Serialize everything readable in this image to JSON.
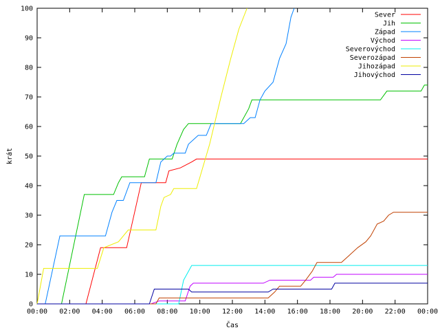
{
  "chart_data": {
    "type": "line",
    "xlabel": "Čas",
    "ylabel": "krát",
    "xlim": [
      0,
      24
    ],
    "ylim": [
      0,
      100
    ],
    "x_ticks": [
      {
        "v": 0,
        "label": "00:00"
      },
      {
        "v": 2,
        "label": "02:00"
      },
      {
        "v": 4,
        "label": "04:00"
      },
      {
        "v": 6,
        "label": "06:00"
      },
      {
        "v": 8,
        "label": "08:00"
      },
      {
        "v": 10,
        "label": "10:00"
      },
      {
        "v": 12,
        "label": "12:00"
      },
      {
        "v": 14,
        "label": "14:00"
      },
      {
        "v": 16,
        "label": "16:00"
      },
      {
        "v": 18,
        "label": "18:00"
      },
      {
        "v": 20,
        "label": "20:00"
      },
      {
        "v": 22,
        "label": "22:00"
      },
      {
        "v": 24,
        "label": "00:00"
      }
    ],
    "y_ticks": [
      {
        "v": 0,
        "label": "0"
      },
      {
        "v": 10,
        "label": "10"
      },
      {
        "v": 20,
        "label": "20"
      },
      {
        "v": 30,
        "label": "30"
      },
      {
        "v": 40,
        "label": "40"
      },
      {
        "v": 50,
        "label": "50"
      },
      {
        "v": 60,
        "label": "60"
      },
      {
        "v": 70,
        "label": "70"
      },
      {
        "v": 80,
        "label": "80"
      },
      {
        "v": 90,
        "label": "90"
      },
      {
        "v": 100,
        "label": "100"
      }
    ],
    "grid": false,
    "legend_position": "top-right",
    "series": [
      {
        "name": "Sever",
        "color": "#ff0000",
        "points": [
          [
            0,
            0
          ],
          [
            3,
            0
          ],
          [
            3.9,
            19
          ],
          [
            5.5,
            19
          ],
          [
            6.4,
            41
          ],
          [
            7.9,
            41
          ],
          [
            8.1,
            45
          ],
          [
            8.8,
            46
          ],
          [
            9.5,
            48
          ],
          [
            9.8,
            49
          ],
          [
            24,
            49
          ]
        ]
      },
      {
        "name": "Jih",
        "color": "#00c000",
        "points": [
          [
            0,
            0
          ],
          [
            1.5,
            0
          ],
          [
            2.9,
            37
          ],
          [
            4.7,
            37
          ],
          [
            5,
            41
          ],
          [
            5.2,
            43
          ],
          [
            6.6,
            43
          ],
          [
            6.9,
            49
          ],
          [
            8.3,
            49
          ],
          [
            8.6,
            54
          ],
          [
            9,
            59
          ],
          [
            9.3,
            61
          ],
          [
            12.5,
            61
          ],
          [
            13,
            66
          ],
          [
            13.2,
            69
          ],
          [
            21.1,
            69
          ],
          [
            21.5,
            72
          ],
          [
            23.6,
            72
          ],
          [
            23.8,
            74
          ],
          [
            24,
            74
          ]
        ]
      },
      {
        "name": "Západ",
        "color": "#0080ff",
        "points": [
          [
            0,
            0
          ],
          [
            0.5,
            0
          ],
          [
            1.4,
            23
          ],
          [
            4.2,
            23
          ],
          [
            4.6,
            31
          ],
          [
            4.9,
            35
          ],
          [
            5.3,
            35
          ],
          [
            5.7,
            41
          ],
          [
            7.3,
            41
          ],
          [
            7.6,
            48
          ],
          [
            8,
            50
          ],
          [
            8.2,
            50
          ],
          [
            8.4,
            51
          ],
          [
            9.1,
            51
          ],
          [
            9.3,
            54
          ],
          [
            9.9,
            57
          ],
          [
            10.4,
            57
          ],
          [
            10.7,
            61
          ],
          [
            12.7,
            61
          ],
          [
            13.1,
            63
          ],
          [
            13.4,
            63
          ],
          [
            13.7,
            69
          ],
          [
            14,
            72
          ],
          [
            14.5,
            75
          ],
          [
            14.9,
            83
          ],
          [
            15.3,
            88
          ],
          [
            15.6,
            97
          ],
          [
            15.8,
            100
          ]
        ]
      },
      {
        "name": "Východ",
        "color": "#c000ff",
        "points": [
          [
            0,
            0
          ],
          [
            7,
            0
          ],
          [
            7.5,
            1
          ],
          [
            9.1,
            1
          ],
          [
            9.4,
            6
          ],
          [
            9.6,
            7
          ],
          [
            13.9,
            7
          ],
          [
            14.3,
            8
          ],
          [
            16.8,
            8
          ],
          [
            17,
            9
          ],
          [
            18.2,
            9
          ],
          [
            18.4,
            10
          ],
          [
            24,
            10
          ]
        ]
      },
      {
        "name": "Severovýchod",
        "color": "#00eeee",
        "points": [
          [
            0,
            0
          ],
          [
            8.7,
            0
          ],
          [
            9,
            8
          ],
          [
            9.3,
            11
          ],
          [
            9.5,
            13
          ],
          [
            24,
            13
          ]
        ]
      },
      {
        "name": "Severozápad",
        "color": "#c04000",
        "points": [
          [
            0,
            0
          ],
          [
            7.3,
            0
          ],
          [
            7.5,
            2
          ],
          [
            14.2,
            2
          ],
          [
            14.6,
            4
          ],
          [
            14.9,
            6
          ],
          [
            16.2,
            6
          ],
          [
            16.5,
            8
          ],
          [
            16.9,
            11
          ],
          [
            17.2,
            14
          ],
          [
            18.7,
            14
          ],
          [
            19.3,
            17
          ],
          [
            19.7,
            19
          ],
          [
            20.2,
            21
          ],
          [
            20.5,
            23
          ],
          [
            20.9,
            27
          ],
          [
            21.3,
            28
          ],
          [
            21.6,
            30
          ],
          [
            21.9,
            31
          ],
          [
            24,
            31
          ]
        ]
      },
      {
        "name": "Jihozápad",
        "color": "#eeee00",
        "points": [
          [
            0,
            0
          ],
          [
            0.4,
            12
          ],
          [
            3.7,
            12
          ],
          [
            4.1,
            19
          ],
          [
            5,
            21
          ],
          [
            5.6,
            25
          ],
          [
            7.3,
            25
          ],
          [
            7.6,
            33
          ],
          [
            7.8,
            36
          ],
          [
            8.2,
            37
          ],
          [
            8.4,
            39
          ],
          [
            9.8,
            39
          ],
          [
            10.6,
            54
          ],
          [
            11.3,
            70
          ],
          [
            11.9,
            83
          ],
          [
            12.4,
            93
          ],
          [
            12.9,
            100
          ]
        ]
      },
      {
        "name": "Jihovýchod",
        "color": "#0000a0",
        "points": [
          [
            0,
            0
          ],
          [
            6.9,
            0
          ],
          [
            7.2,
            5
          ],
          [
            9.3,
            5
          ],
          [
            9.5,
            4
          ],
          [
            14.2,
            4
          ],
          [
            14.5,
            5
          ],
          [
            18.1,
            5
          ],
          [
            18.3,
            7
          ],
          [
            24,
            7
          ]
        ]
      }
    ]
  }
}
